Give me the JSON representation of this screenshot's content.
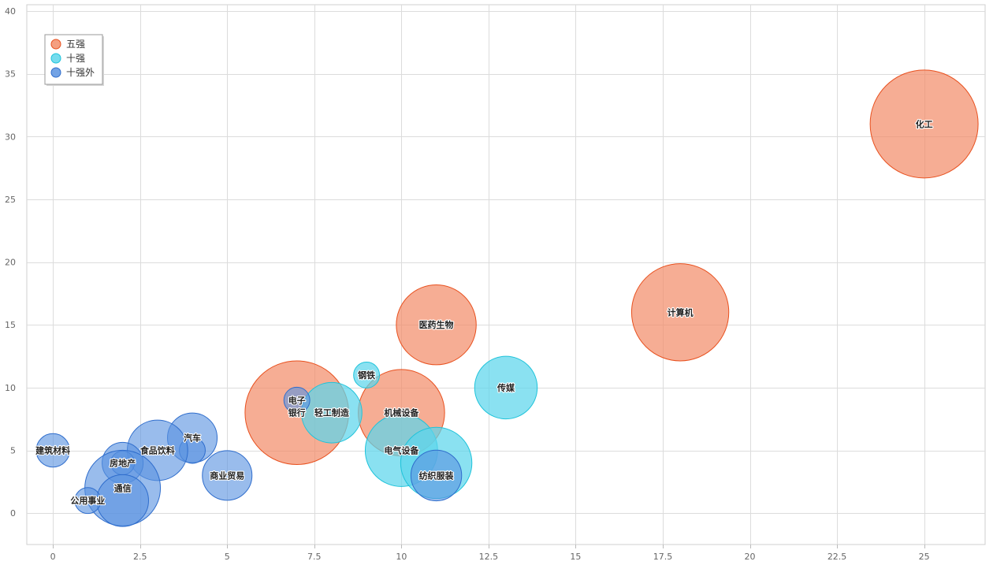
{
  "chart_data": {
    "type": "scatter",
    "title": "",
    "xlabel": "",
    "ylabel": "",
    "xlim": [
      -0.75,
      26.75
    ],
    "ylim": [
      -2.5,
      40.5
    ],
    "x_ticks": [
      "0",
      "2.5",
      "5",
      "7.5",
      "10",
      "12.5",
      "15",
      "17.5",
      "20",
      "22.5",
      "25"
    ],
    "y_ticks": [
      "0",
      "5",
      "10",
      "15",
      "20",
      "25",
      "30",
      "35",
      "40"
    ],
    "grid": true,
    "legend_position": "top-left",
    "series": [
      {
        "name": "五强",
        "fill": "#f28e6b",
        "stroke": "#e8501e",
        "points": [
          {
            "label": "化工",
            "x": 25,
            "y": 31,
            "size": 10
          },
          {
            "label": "计算机",
            "x": 18,
            "y": 16,
            "size": 9
          },
          {
            "label": "医药生物",
            "x": 11,
            "y": 15,
            "size": 7.4
          },
          {
            "label": "银行",
            "x": 7,
            "y": 8,
            "size": 9.6
          },
          {
            "label": "机械设备",
            "x": 10,
            "y": 8,
            "size": 8
          }
        ]
      },
      {
        "name": "十强",
        "fill": "#5dd6eb",
        "stroke": "#1ec3da",
        "points": [
          {
            "label": "传媒",
            "x": 13,
            "y": 10,
            "size": 5.8
          },
          {
            "label": "钢铁",
            "x": 9,
            "y": 11,
            "size": 2.4
          },
          {
            "label": "轻工制造",
            "x": 8,
            "y": 8,
            "size": 5.6
          },
          {
            "label": "电气设备",
            "x": 10,
            "y": 5,
            "size": 6.7
          },
          {
            "label": "",
            "x": 11,
            "y": 4,
            "size": 6.6
          }
        ]
      },
      {
        "name": "十强外",
        "fill": "#5b93e0",
        "stroke": "#2f6dcc",
        "points": [
          {
            "label": "电子",
            "x": 7,
            "y": 9,
            "size": 2.4
          },
          {
            "label": "汽车",
            "x": 4,
            "y": 6,
            "size": 4.6
          },
          {
            "label": "",
            "x": 4,
            "y": 5,
            "size": 2.4
          },
          {
            "label": "食品饮料",
            "x": 3,
            "y": 5,
            "size": 5.6
          },
          {
            "label": "房地产",
            "x": 2,
            "y": 4,
            "size": 3.8
          },
          {
            "label": "",
            "x": 2,
            "y": 4,
            "size": 2.2
          },
          {
            "label": "建筑材料",
            "x": 0,
            "y": 5,
            "size": 3.1
          },
          {
            "label": "商业贸易",
            "x": 5,
            "y": 3,
            "size": 4.6
          },
          {
            "label": "纺织服装",
            "x": 11,
            "y": 3,
            "size": 4.7
          },
          {
            "label": "通信",
            "x": 2,
            "y": 2,
            "size": 7
          },
          {
            "label": "",
            "x": 2,
            "y": 1,
            "size": 4.8
          },
          {
            "label": "公用事业",
            "x": 1,
            "y": 1,
            "size": 2.4
          }
        ]
      }
    ]
  }
}
